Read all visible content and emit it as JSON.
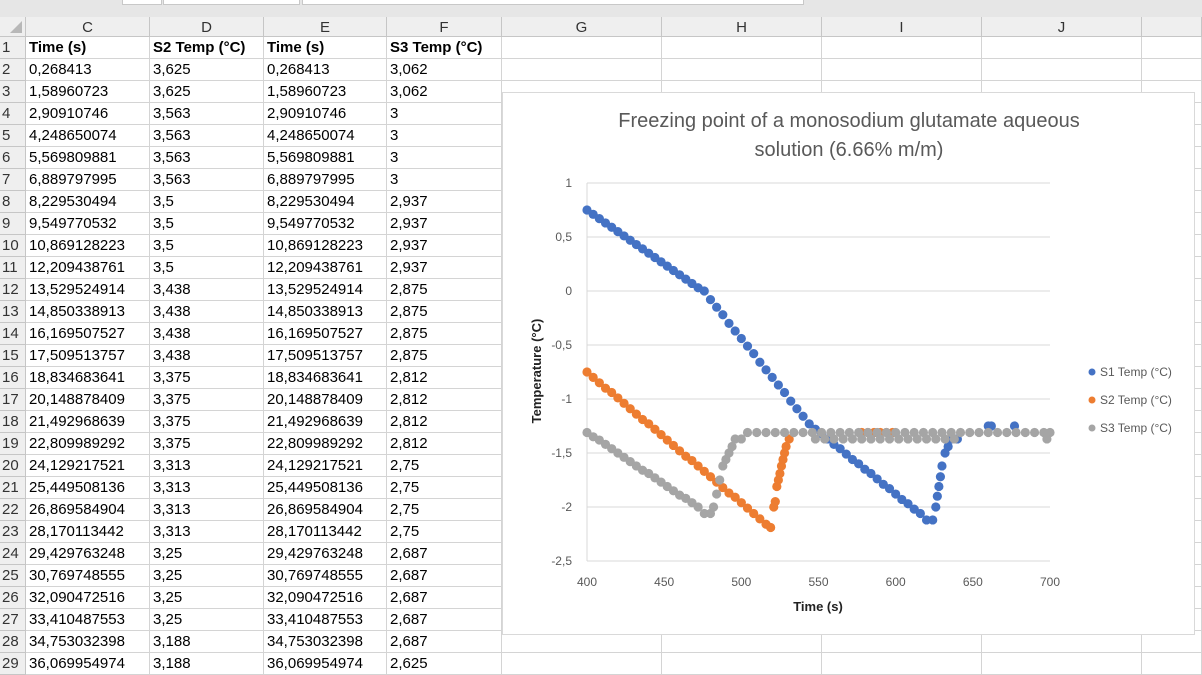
{
  "sheet": {
    "columns": [
      "C",
      "D",
      "E",
      "F",
      "G",
      "H",
      "I",
      "J"
    ],
    "header_row": [
      "Time (s)",
      "S2 Temp (°C)",
      "Time (s)",
      "S3 Temp (°C)"
    ],
    "rows": [
      [
        "0,268413",
        "3,625",
        "0,268413",
        "3,062"
      ],
      [
        "1,58960723",
        "3,625",
        "1,58960723",
        "3,062"
      ],
      [
        "2,90910746",
        "3,563",
        "2,90910746",
        "3"
      ],
      [
        "4,248650074",
        "3,563",
        "4,248650074",
        "3"
      ],
      [
        "5,569809881",
        "3,563",
        "5,569809881",
        "3"
      ],
      [
        "6,889797995",
        "3,563",
        "6,889797995",
        "3"
      ],
      [
        "8,229530494",
        "3,5",
        "8,229530494",
        "2,937"
      ],
      [
        "9,549770532",
        "3,5",
        "9,549770532",
        "2,937"
      ],
      [
        "10,869128223",
        "3,5",
        "10,869128223",
        "2,937"
      ],
      [
        "12,209438761",
        "3,5",
        "12,209438761",
        "2,937"
      ],
      [
        "13,529524914",
        "3,438",
        "13,529524914",
        "2,875"
      ],
      [
        "14,850338913",
        "3,438",
        "14,850338913",
        "2,875"
      ],
      [
        "16,169507527",
        "3,438",
        "16,169507527",
        "2,875"
      ],
      [
        "17,509513757",
        "3,438",
        "17,509513757",
        "2,875"
      ],
      [
        "18,834683641",
        "3,375",
        "18,834683641",
        "2,812"
      ],
      [
        "20,148878409",
        "3,375",
        "20,148878409",
        "2,812"
      ],
      [
        "21,492968639",
        "3,375",
        "21,492968639",
        "2,812"
      ],
      [
        "22,809989292",
        "3,375",
        "22,809989292",
        "2,812"
      ],
      [
        "24,129217521",
        "3,313",
        "24,129217521",
        "2,75"
      ],
      [
        "25,449508136",
        "3,313",
        "25,449508136",
        "2,75"
      ],
      [
        "26,869584904",
        "3,313",
        "26,869584904",
        "2,75"
      ],
      [
        "28,170113442",
        "3,313",
        "28,170113442",
        "2,75"
      ],
      [
        "29,429763248",
        "3,25",
        "29,429763248",
        "2,687"
      ],
      [
        "30,769748555",
        "3,25",
        "30,769748555",
        "2,687"
      ],
      [
        "32,090472516",
        "3,25",
        "32,090472516",
        "2,687"
      ],
      [
        "33,410487553",
        "3,25",
        "33,410487553",
        "2,687"
      ],
      [
        "34,753032398",
        "3,188",
        "34,753032398",
        "2,687"
      ],
      [
        "36,069954974",
        "3,188",
        "36,069954974",
        "2,625"
      ]
    ]
  },
  "chart_data": {
    "type": "scatter",
    "title": "Freezing point of a monosodium glutamate aqueous solution (6.66%  m/m)",
    "title_lines": [
      "Freezing point of a monosodium glutamate aqueous",
      "solution (6.66%  m/m)"
    ],
    "xlabel": "Time (s)",
    "ylabel": "Temperature (°C)",
    "xlim": [
      400,
      700
    ],
    "ylim": [
      -2.5,
      1
    ],
    "xticks": [
      "400",
      "450",
      "500",
      "550",
      "600",
      "650",
      "700"
    ],
    "yticks": [
      "1",
      "0,5",
      "0",
      "-0,5",
      "-1",
      "-1,5",
      "-2",
      "-2,5"
    ],
    "grid": "horizontal",
    "legend": "right",
    "series": [
      {
        "name": "S1 Temp (°C)",
        "color": "#4472C4",
        "points": [
          [
            400,
            0.75
          ],
          [
            404,
            0.71
          ],
          [
            408,
            0.67
          ],
          [
            412,
            0.63
          ],
          [
            416,
            0.59
          ],
          [
            420,
            0.55
          ],
          [
            424,
            0.51
          ],
          [
            428,
            0.47
          ],
          [
            432,
            0.43
          ],
          [
            436,
            0.39
          ],
          [
            440,
            0.35
          ],
          [
            444,
            0.31
          ],
          [
            448,
            0.27
          ],
          [
            452,
            0.23
          ],
          [
            456,
            0.19
          ],
          [
            460,
            0.15
          ],
          [
            464,
            0.11
          ],
          [
            468,
            0.07
          ],
          [
            472,
            0.03
          ],
          [
            476,
            0
          ],
          [
            480,
            -0.08
          ],
          [
            484,
            -0.15
          ],
          [
            488,
            -0.22
          ],
          [
            492,
            -0.3
          ],
          [
            496,
            -0.37
          ],
          [
            500,
            -0.44
          ],
          [
            504,
            -0.51
          ],
          [
            508,
            -0.58
          ],
          [
            512,
            -0.66
          ],
          [
            516,
            -0.73
          ],
          [
            520,
            -0.8
          ],
          [
            524,
            -0.87
          ],
          [
            528,
            -0.94
          ],
          [
            532,
            -1.02
          ],
          [
            536,
            -1.09
          ],
          [
            540,
            -1.16
          ],
          [
            544,
            -1.23
          ],
          [
            548,
            -1.28
          ],
          [
            552,
            -1.32
          ],
          [
            556,
            -1.37
          ],
          [
            560,
            -1.42
          ],
          [
            564,
            -1.46
          ],
          [
            568,
            -1.51
          ],
          [
            572,
            -1.56
          ],
          [
            576,
            -1.6
          ],
          [
            580,
            -1.65
          ],
          [
            584,
            -1.69
          ],
          [
            588,
            -1.74
          ],
          [
            592,
            -1.79
          ],
          [
            596,
            -1.83
          ],
          [
            600,
            -1.88
          ],
          [
            604,
            -1.93
          ],
          [
            608,
            -1.97
          ],
          [
            612,
            -2.02
          ],
          [
            616,
            -2.06
          ],
          [
            620,
            -2.12
          ],
          [
            624,
            -2.12
          ],
          [
            626,
            -2.0
          ],
          [
            627,
            -1.9
          ],
          [
            628,
            -1.81
          ],
          [
            629,
            -1.72
          ],
          [
            630,
            -1.62
          ],
          [
            632,
            -1.5
          ],
          [
            634,
            -1.44
          ],
          [
            636,
            -1.37
          ],
          [
            640,
            -1.37
          ],
          [
            660,
            -1.25
          ],
          [
            662,
            -1.25
          ],
          [
            677,
            -1.25
          ]
        ]
      },
      {
        "name": "S2 Temp (°C)",
        "color": "#ED7D31",
        "points": [
          [
            400,
            -0.75
          ],
          [
            404,
            -0.8
          ],
          [
            408,
            -0.85
          ],
          [
            412,
            -0.9
          ],
          [
            416,
            -0.94
          ],
          [
            420,
            -0.99
          ],
          [
            424,
            -1.04
          ],
          [
            428,
            -1.09
          ],
          [
            432,
            -1.14
          ],
          [
            436,
            -1.19
          ],
          [
            440,
            -1.23
          ],
          [
            444,
            -1.28
          ],
          [
            448,
            -1.33
          ],
          [
            452,
            -1.38
          ],
          [
            456,
            -1.43
          ],
          [
            460,
            -1.48
          ],
          [
            464,
            -1.53
          ],
          [
            468,
            -1.57
          ],
          [
            472,
            -1.62
          ],
          [
            476,
            -1.67
          ],
          [
            480,
            -1.72
          ],
          [
            484,
            -1.77
          ],
          [
            488,
            -1.82
          ],
          [
            492,
            -1.87
          ],
          [
            496,
            -1.91
          ],
          [
            500,
            -1.96
          ],
          [
            504,
            -2.01
          ],
          [
            508,
            -2.06
          ],
          [
            512,
            -2.11
          ],
          [
            516,
            -2.16
          ],
          [
            519,
            -2.19
          ],
          [
            521,
            -2.0
          ],
          [
            522,
            -1.95
          ],
          [
            523,
            -1.81
          ],
          [
            524,
            -1.75
          ],
          [
            525,
            -1.69
          ],
          [
            526,
            -1.62
          ],
          [
            527,
            -1.56
          ],
          [
            528,
            -1.5
          ],
          [
            529,
            -1.44
          ],
          [
            531,
            -1.37
          ],
          [
            578,
            -1.31
          ],
          [
            582,
            -1.31
          ],
          [
            586,
            -1.31
          ],
          [
            590,
            -1.31
          ],
          [
            594,
            -1.31
          ],
          [
            598,
            -1.31
          ]
        ]
      },
      {
        "name": "S3 Temp (°C)",
        "color": "#A5A5A5",
        "points": [
          [
            400,
            -1.31
          ],
          [
            404,
            -1.35
          ],
          [
            408,
            -1.38
          ],
          [
            412,
            -1.42
          ],
          [
            416,
            -1.46
          ],
          [
            420,
            -1.5
          ],
          [
            424,
            -1.54
          ],
          [
            428,
            -1.58
          ],
          [
            432,
            -1.62
          ],
          [
            436,
            -1.66
          ],
          [
            440,
            -1.69
          ],
          [
            444,
            -1.73
          ],
          [
            448,
            -1.77
          ],
          [
            452,
            -1.81
          ],
          [
            456,
            -1.85
          ],
          [
            460,
            -1.89
          ],
          [
            464,
            -1.92
          ],
          [
            468,
            -1.96
          ],
          [
            472,
            -2.0
          ],
          [
            476,
            -2.06
          ],
          [
            480,
            -2.06
          ],
          [
            482,
            -2.0
          ],
          [
            484,
            -1.88
          ],
          [
            486,
            -1.75
          ],
          [
            488,
            -1.62
          ],
          [
            490,
            -1.56
          ],
          [
            492,
            -1.5
          ],
          [
            494,
            -1.44
          ],
          [
            496,
            -1.37
          ],
          [
            500,
            -1.37
          ],
          [
            504,
            -1.31
          ],
          [
            510,
            -1.31
          ],
          [
            516,
            -1.31
          ],
          [
            522,
            -1.31
          ],
          [
            528,
            -1.31
          ],
          [
            534,
            -1.31
          ],
          [
            540,
            -1.31
          ],
          [
            546,
            -1.31
          ],
          [
            552,
            -1.31
          ],
          [
            558,
            -1.31
          ],
          [
            564,
            -1.31
          ],
          [
            570,
            -1.31
          ],
          [
            576,
            -1.31
          ],
          [
            582,
            -1.31
          ],
          [
            588,
            -1.31
          ],
          [
            594,
            -1.31
          ],
          [
            600,
            -1.31
          ],
          [
            606,
            -1.31
          ],
          [
            612,
            -1.31
          ],
          [
            618,
            -1.31
          ],
          [
            624,
            -1.31
          ],
          [
            630,
            -1.31
          ],
          [
            636,
            -1.31
          ],
          [
            642,
            -1.31
          ],
          [
            648,
            -1.31
          ],
          [
            654,
            -1.31
          ],
          [
            660,
            -1.31
          ],
          [
            666,
            -1.31
          ],
          [
            672,
            -1.31
          ],
          [
            678,
            -1.31
          ],
          [
            684,
            -1.31
          ],
          [
            690,
            -1.31
          ],
          [
            696,
            -1.31
          ],
          [
            700,
            -1.31
          ],
          [
            548,
            -1.37
          ],
          [
            554,
            -1.37
          ],
          [
            560,
            -1.37
          ],
          [
            566,
            -1.37
          ],
          [
            572,
            -1.37
          ],
          [
            578,
            -1.37
          ],
          [
            584,
            -1.37
          ],
          [
            590,
            -1.37
          ],
          [
            596,
            -1.37
          ],
          [
            602,
            -1.37
          ],
          [
            608,
            -1.37
          ],
          [
            614,
            -1.37
          ],
          [
            620,
            -1.37
          ],
          [
            626,
            -1.37
          ],
          [
            632,
            -1.37
          ],
          [
            638,
            -1.37
          ],
          [
            698,
            -1.37
          ]
        ]
      }
    ]
  }
}
